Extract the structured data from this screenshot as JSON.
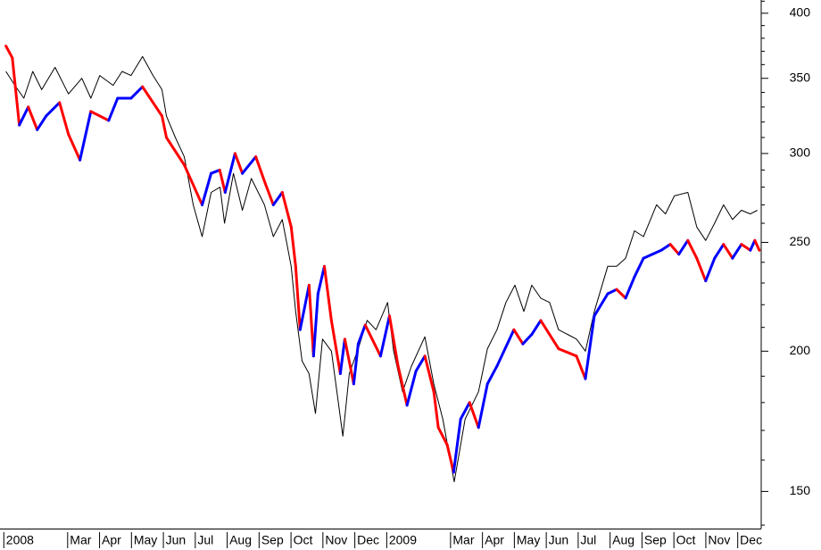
{
  "chart_data": {
    "type": "line",
    "log_scale": true,
    "axis_side": "right",
    "xlim": [
      -0.05,
      23.75
    ],
    "ylim": [
      139,
      411
    ],
    "yticks": [
      150,
      200,
      250,
      300,
      350,
      400
    ],
    "yticks_minor": [
      140,
      160,
      170,
      180,
      190,
      210,
      220,
      230,
      240,
      260,
      270,
      280,
      290,
      310,
      320,
      330,
      340,
      360,
      370,
      380,
      390,
      410
    ],
    "xticks": [
      {
        "value": 0,
        "label": "2008"
      },
      {
        "value": 2,
        "label": "Mar"
      },
      {
        "value": 3,
        "label": "Apr"
      },
      {
        "value": 4,
        "label": "May"
      },
      {
        "value": 5,
        "label": "Jun"
      },
      {
        "value": 6,
        "label": "Jul"
      },
      {
        "value": 7,
        "label": "Aug"
      },
      {
        "value": 8,
        "label": "Sep"
      },
      {
        "value": 9,
        "label": "Oct"
      },
      {
        "value": 10,
        "label": "Nov"
      },
      {
        "value": 11,
        "label": "Dec"
      },
      {
        "value": 12,
        "label": "2009"
      },
      {
        "value": 14,
        "label": "Mar"
      },
      {
        "value": 15,
        "label": "Apr"
      },
      {
        "value": 16,
        "label": "May"
      },
      {
        "value": 17,
        "label": "Jun"
      },
      {
        "value": 18,
        "label": "Jul"
      },
      {
        "value": 19,
        "label": "Aug"
      },
      {
        "value": 20,
        "label": "Sep"
      },
      {
        "value": 21,
        "label": "Oct"
      },
      {
        "value": 22,
        "label": "Nov"
      },
      {
        "value": 23,
        "label": "Dec"
      }
    ],
    "series": [
      {
        "color": "#000000",
        "width": 1,
        "x": [
          0.08,
          0.36,
          0.64,
          0.92,
          1.2,
          1.62,
          2.04,
          2.46,
          2.74,
          3.02,
          3.44,
          3.72,
          4.0,
          4.36,
          4.69,
          4.97,
          5.11,
          5.39,
          5.67,
          5.95,
          6.23,
          6.51,
          6.79,
          6.93,
          7.21,
          7.49,
          7.77,
          8.18,
          8.46,
          8.74,
          9.02,
          9.16,
          9.36,
          9.58,
          9.78,
          10.0,
          10.28,
          10.64,
          10.84,
          11.12,
          11.4,
          11.68,
          12.04,
          12.23,
          12.51,
          12.79,
          13.21,
          13.49,
          13.77,
          14.13,
          14.47,
          14.89,
          15.17,
          15.47,
          15.75,
          16.03,
          16.31,
          16.56,
          16.84,
          17.12,
          17.4,
          17.68,
          17.96,
          18.24,
          18.52,
          18.94,
          19.22,
          19.5,
          19.78,
          20.06,
          20.47,
          20.75,
          21.03,
          21.45,
          21.73,
          22.01,
          22.29,
          22.57,
          22.85,
          23.13,
          23.41,
          23.63
        ],
        "values": [
          355,
          345,
          336,
          355,
          342,
          358,
          339,
          350,
          336,
          352,
          345,
          355,
          352,
          366,
          352,
          342,
          324,
          310,
          298,
          270,
          253,
          277,
          280,
          260,
          288,
          267,
          285,
          270,
          253,
          262,
          238,
          217,
          196,
          191,
          176,
          205,
          200,
          168,
          191,
          201,
          213,
          209,
          221,
          200,
          184,
          194,
          206,
          187,
          174,
          153,
          174,
          184,
          201,
          209,
          221,
          229,
          217,
          229,
          223,
          221,
          209,
          207,
          205,
          200,
          217,
          238,
          238,
          242,
          256,
          253,
          270,
          265,
          275,
          277,
          258,
          251,
          260,
          270,
          262,
          267,
          265,
          267
        ]
      },
      {
        "width": 3,
        "up_color": "#0000ff",
        "down_color": "#ff0000",
        "x": [
          0.08,
          0.28,
          0.5,
          0.78,
          1.06,
          1.34,
          1.76,
          2.04,
          2.4,
          2.74,
          3.3,
          3.58,
          4.0,
          4.36,
          4.97,
          5.11,
          5.67,
          6.23,
          6.51,
          6.78,
          6.95,
          7.26,
          7.49,
          7.91,
          8.19,
          8.46,
          8.74,
          9.02,
          9.16,
          9.3,
          9.58,
          9.72,
          9.86,
          10.06,
          10.28,
          10.56,
          10.7,
          10.98,
          11.12,
          11.34,
          11.82,
          12.1,
          12.37,
          12.65,
          12.93,
          13.21,
          13.49,
          13.63,
          13.91,
          14.11,
          14.33,
          14.61,
          14.89,
          15.17,
          15.47,
          16.0,
          16.28,
          16.56,
          16.84,
          17.4,
          17.96,
          18.24,
          18.52,
          18.94,
          19.22,
          19.5,
          19.78,
          20.06,
          20.34,
          20.62,
          20.9,
          21.17,
          21.45,
          21.73,
          22.01,
          22.29,
          22.57,
          22.85,
          23.13,
          23.41,
          23.55,
          23.69
        ],
        "values": [
          374,
          365,
          318,
          330,
          315,
          324,
          333,
          312,
          296,
          327,
          321,
          336,
          336,
          344,
          324,
          310,
          293,
          270,
          288,
          290,
          277,
          300,
          288,
          298,
          283,
          270,
          277,
          258,
          238,
          209,
          229,
          198,
          225,
          238,
          213,
          191,
          205,
          187,
          203,
          211,
          198,
          215,
          194,
          179,
          192,
          198,
          184,
          171,
          165,
          156,
          174,
          180,
          171,
          187,
          194,
          209,
          203,
          207,
          213,
          201,
          198,
          189,
          215,
          225,
          227,
          223,
          233,
          242,
          244,
          246,
          249,
          244,
          251,
          242,
          231,
          242,
          249,
          242,
          249,
          246,
          251,
          246
        ]
      }
    ]
  }
}
